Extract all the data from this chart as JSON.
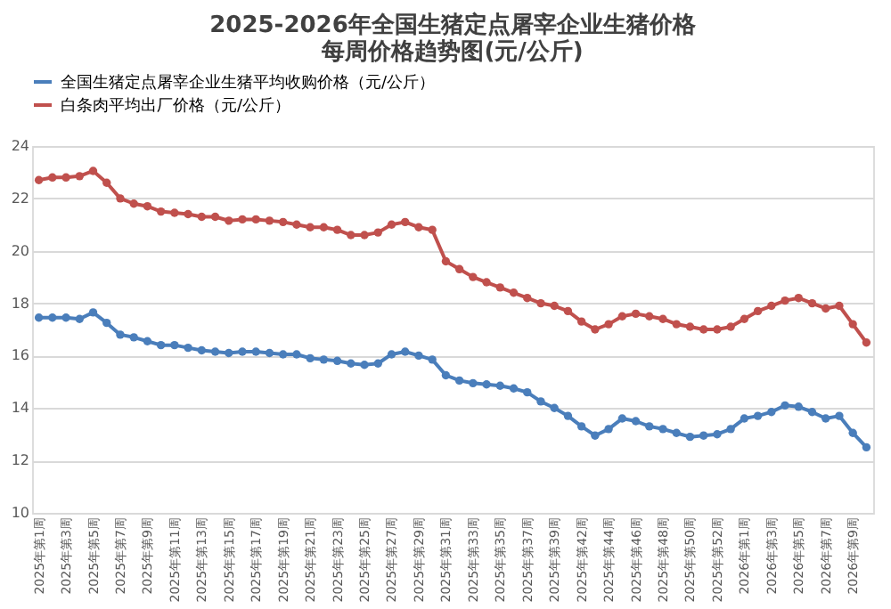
{
  "chart_data": {
    "type": "line",
    "title": "2025-2026年全国生猪定点屠宰企业生猪价格",
    "subtitle": "每周价格趋势图(元/公斤)",
    "categories": [
      "2025年第1周",
      null,
      "2025年第3周",
      null,
      "2025年第5周",
      null,
      "2025年第7周",
      null,
      "2025年第9周",
      null,
      "2025年第11周",
      null,
      "2025年第13周",
      null,
      "2025年第15周",
      null,
      "2025年第17周",
      null,
      "2025年第19周",
      null,
      "2025年第21周",
      null,
      "2025年第23周",
      null,
      "2025年第25周",
      null,
      "2025年第27周",
      null,
      "2025年第29周",
      null,
      "2025年第31周",
      null,
      "2025年第33周",
      null,
      "2025年第35周",
      null,
      "2025年第37周",
      null,
      "2025年第39周",
      null,
      "2025年第42周",
      null,
      "2025年第44周",
      null,
      "2025年第46周",
      null,
      "2025年第48周",
      null,
      "2025年第50周",
      null,
      "2025年第52周",
      null,
      "2026年第1周",
      null,
      "2026年第3周",
      null,
      "2026年第5周",
      null,
      "2026年第7周",
      null,
      "2026年第9周",
      null
    ],
    "series": [
      {
        "name": "全国生猪定点屠宰企业生猪平均收购价格（元/公斤）",
        "color": "#4a7ebb",
        "values": [
          17.45,
          17.45,
          17.45,
          17.4,
          17.65,
          17.25,
          16.8,
          16.7,
          16.55,
          16.4,
          16.4,
          16.3,
          16.2,
          16.15,
          16.1,
          16.15,
          16.15,
          16.1,
          16.05,
          16.05,
          15.9,
          15.85,
          15.8,
          15.7,
          15.65,
          15.7,
          16.05,
          16.15,
          16.0,
          15.85,
          15.25,
          15.05,
          14.95,
          14.9,
          14.85,
          14.75,
          14.6,
          14.25,
          14.0,
          13.7,
          13.3,
          12.95,
          13.2,
          13.6,
          13.5,
          13.3,
          13.2,
          13.05,
          12.9,
          12.95,
          13.0,
          13.2,
          13.6,
          13.7,
          13.85,
          14.1,
          14.05,
          13.85,
          13.6,
          13.7,
          13.05,
          12.5
        ]
      },
      {
        "name": "白条肉平均出厂价格（元/公斤）",
        "color": "#c0504d",
        "values": [
          22.7,
          22.8,
          22.8,
          22.85,
          23.05,
          22.6,
          22.0,
          21.8,
          21.7,
          21.5,
          21.45,
          21.4,
          21.3,
          21.3,
          21.15,
          21.2,
          21.2,
          21.15,
          21.1,
          21.0,
          20.9,
          20.9,
          20.8,
          20.6,
          20.6,
          20.7,
          21.0,
          21.1,
          20.9,
          20.8,
          19.6,
          19.3,
          19.0,
          18.8,
          18.6,
          18.4,
          18.2,
          18.0,
          17.9,
          17.7,
          17.3,
          17.0,
          17.2,
          17.5,
          17.6,
          17.5,
          17.4,
          17.2,
          17.1,
          17.0,
          17.0,
          17.1,
          17.4,
          17.7,
          17.9,
          18.1,
          18.2,
          18.0,
          17.8,
          17.9,
          17.2,
          16.5
        ]
      }
    ],
    "ylim": [
      10,
      24
    ],
    "yticks": [
      10,
      12,
      14,
      16,
      18,
      20,
      22,
      24
    ],
    "grid": "y",
    "legend": "top",
    "marker": "circle",
    "line_style": "solid"
  }
}
